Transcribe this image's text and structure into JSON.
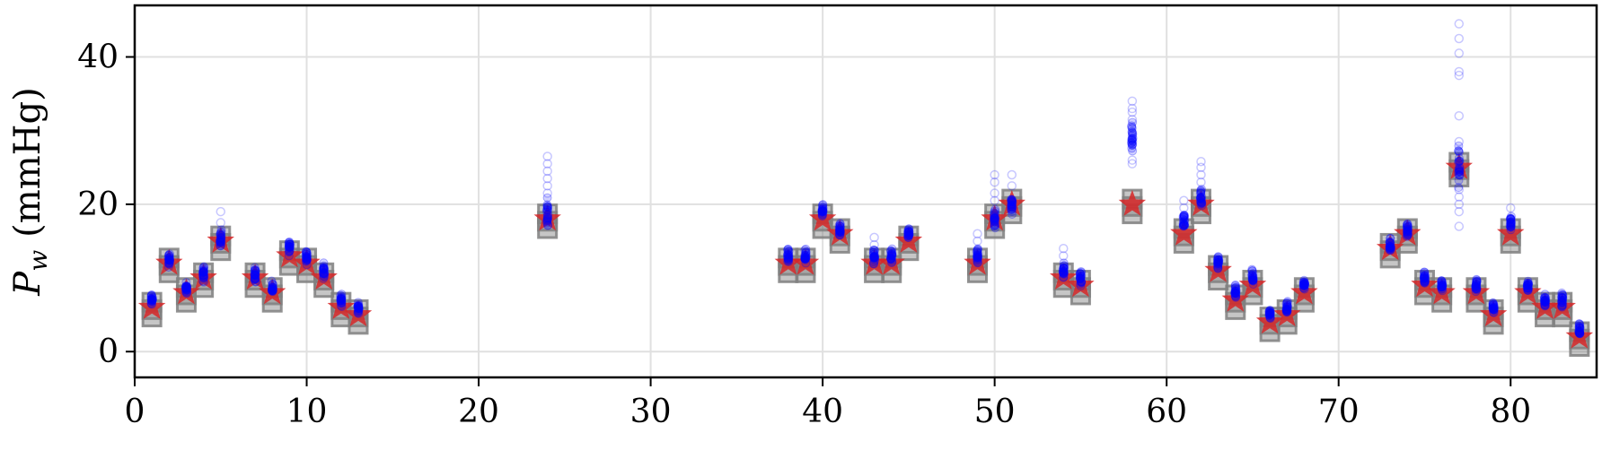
{
  "chart_data": {
    "type": "scatter",
    "title": "",
    "xlabel": "",
    "ylabel": {
      "symbol": "P",
      "subscript": "w",
      "unit": "(mmHg)"
    },
    "xlim": [
      0,
      85
    ],
    "ylim": [
      -3.5,
      47
    ],
    "grid": true,
    "x_ticks": [
      0,
      10,
      20,
      30,
      40,
      50,
      60,
      70,
      80
    ],
    "y_ticks": [
      0,
      20,
      40
    ],
    "colors": {
      "reference": "#d62728",
      "band": "#808080",
      "samples": "#0000ff",
      "grid": "#e0e0e0"
    },
    "reference_stars": [
      {
        "x": 1,
        "y": 6
      },
      {
        "x": 2,
        "y": 12
      },
      {
        "x": 3,
        "y": 8
      },
      {
        "x": 4,
        "y": 10
      },
      {
        "x": 5,
        "y": 15
      },
      {
        "x": 7,
        "y": 10
      },
      {
        "x": 8,
        "y": 8
      },
      {
        "x": 9,
        "y": 13
      },
      {
        "x": 10,
        "y": 12
      },
      {
        "x": 11,
        "y": 10
      },
      {
        "x": 12,
        "y": 6
      },
      {
        "x": 13,
        "y": 5
      },
      {
        "x": 24,
        "y": 18
      },
      {
        "x": 38,
        "y": 12
      },
      {
        "x": 39,
        "y": 12
      },
      {
        "x": 40,
        "y": 18
      },
      {
        "x": 41,
        "y": 16
      },
      {
        "x": 43,
        "y": 12
      },
      {
        "x": 44,
        "y": 12
      },
      {
        "x": 45,
        "y": 15
      },
      {
        "x": 49,
        "y": 12
      },
      {
        "x": 50,
        "y": 18
      },
      {
        "x": 51,
        "y": 20
      },
      {
        "x": 54,
        "y": 10
      },
      {
        "x": 55,
        "y": 9
      },
      {
        "x": 58,
        "y": 20
      },
      {
        "x": 61,
        "y": 16
      },
      {
        "x": 62,
        "y": 20
      },
      {
        "x": 63,
        "y": 11
      },
      {
        "x": 64,
        "y": 7
      },
      {
        "x": 65,
        "y": 9
      },
      {
        "x": 66,
        "y": 4
      },
      {
        "x": 67,
        "y": 5
      },
      {
        "x": 68,
        "y": 8
      },
      {
        "x": 73,
        "y": 14
      },
      {
        "x": 74,
        "y": 16
      },
      {
        "x": 75,
        "y": 9
      },
      {
        "x": 76,
        "y": 8
      },
      {
        "x": 77,
        "y": 25
      },
      {
        "x": 78,
        "y": 8
      },
      {
        "x": 79,
        "y": 5
      },
      {
        "x": 80,
        "y": 16
      },
      {
        "x": 81,
        "y": 8
      },
      {
        "x": 82,
        "y": 6
      },
      {
        "x": 83,
        "y": 6
      },
      {
        "x": 84,
        "y": 2
      }
    ],
    "sample_clusters": [
      {
        "x": 1,
        "mean": 7,
        "spread": 0.7,
        "outliers": []
      },
      {
        "x": 2,
        "mean": 12.5,
        "spread": 0.7,
        "outliers": []
      },
      {
        "x": 3,
        "mean": 8.5,
        "spread": 0.7,
        "outliers": []
      },
      {
        "x": 4,
        "mean": 10.5,
        "spread": 0.8,
        "outliers": []
      },
      {
        "x": 5,
        "mean": 15.5,
        "spread": 1.0,
        "outliers": [
          17.5,
          19
        ]
      },
      {
        "x": 7,
        "mean": 10.5,
        "spread": 0.8,
        "outliers": []
      },
      {
        "x": 8,
        "mean": 8.5,
        "spread": 0.6,
        "outliers": []
      },
      {
        "x": 9,
        "mean": 14,
        "spread": 0.7,
        "outliers": []
      },
      {
        "x": 10,
        "mean": 13,
        "spread": 0.7,
        "outliers": []
      },
      {
        "x": 11,
        "mean": 11,
        "spread": 0.7,
        "outliers": []
      },
      {
        "x": 12,
        "mean": 7,
        "spread": 0.6,
        "outliers": []
      },
      {
        "x": 13,
        "mean": 6,
        "spread": 0.6,
        "outliers": []
      },
      {
        "x": 24,
        "mean": 18.5,
        "spread": 1.4,
        "outliers": [
          21.5,
          22.5,
          23.5,
          24.5,
          25.5,
          26.5
        ]
      },
      {
        "x": 38,
        "mean": 13,
        "spread": 0.7,
        "outliers": []
      },
      {
        "x": 39,
        "mean": 13,
        "spread": 0.6,
        "outliers": []
      },
      {
        "x": 40,
        "mean": 19,
        "spread": 0.8,
        "outliers": []
      },
      {
        "x": 41,
        "mean": 16.5,
        "spread": 0.7,
        "outliers": []
      },
      {
        "x": 43,
        "mean": 13,
        "spread": 0.8,
        "outliers": [
          14.5,
          15.5
        ]
      },
      {
        "x": 44,
        "mean": 13,
        "spread": 0.7,
        "outliers": []
      },
      {
        "x": 45,
        "mean": 16,
        "spread": 0.7,
        "outliers": []
      },
      {
        "x": 49,
        "mean": 13,
        "spread": 0.8,
        "outliers": [
          15,
          16
        ]
      },
      {
        "x": 50,
        "mean": 18,
        "spread": 1.0,
        "outliers": [
          20.5,
          21.5,
          23,
          24
        ]
      },
      {
        "x": 51,
        "mean": 20,
        "spread": 1.0,
        "outliers": [
          22.5,
          24
        ]
      },
      {
        "x": 54,
        "mean": 11,
        "spread": 0.8,
        "outliers": [
          13,
          14
        ]
      },
      {
        "x": 55,
        "mean": 10,
        "spread": 0.7,
        "outliers": []
      },
      {
        "x": 58,
        "mean": 29,
        "spread": 1.5,
        "outliers": [
          25.5,
          26,
          31.5,
          32.5,
          33,
          34
        ]
      },
      {
        "x": 61,
        "mean": 17.5,
        "spread": 1.0,
        "outliers": [
          19.5,
          20.5
        ]
      },
      {
        "x": 62,
        "mean": 20.5,
        "spread": 1.1,
        "outliers": [
          23,
          24,
          25,
          25.8
        ]
      },
      {
        "x": 63,
        "mean": 12,
        "spread": 0.8,
        "outliers": []
      },
      {
        "x": 64,
        "mean": 8,
        "spread": 0.7,
        "outliers": []
      },
      {
        "x": 65,
        "mean": 10,
        "spread": 0.7,
        "outliers": []
      },
      {
        "x": 66,
        "mean": 5,
        "spread": 0.6,
        "outliers": []
      },
      {
        "x": 67,
        "mean": 6,
        "spread": 0.6,
        "outliers": []
      },
      {
        "x": 68,
        "mean": 9,
        "spread": 0.6,
        "outliers": []
      },
      {
        "x": 73,
        "mean": 14.5,
        "spread": 0.7,
        "outliers": []
      },
      {
        "x": 74,
        "mean": 16.5,
        "spread": 0.7,
        "outliers": []
      },
      {
        "x": 75,
        "mean": 10,
        "spread": 0.6,
        "outliers": []
      },
      {
        "x": 76,
        "mean": 9,
        "spread": 0.6,
        "outliers": []
      },
      {
        "x": 77,
        "mean": 25,
        "spread": 2.5,
        "outliers": [
          17,
          19,
          20,
          21,
          22,
          28.5,
          32,
          37.5,
          38,
          40.5,
          42.5,
          44.5
        ]
      },
      {
        "x": 78,
        "mean": 9,
        "spread": 0.6,
        "outliers": []
      },
      {
        "x": 79,
        "mean": 6,
        "spread": 0.6,
        "outliers": []
      },
      {
        "x": 80,
        "mean": 17.5,
        "spread": 0.8,
        "outliers": [
          19.5
        ]
      },
      {
        "x": 81,
        "mean": 9,
        "spread": 0.6,
        "outliers": []
      },
      {
        "x": 82,
        "mean": 7,
        "spread": 0.6,
        "outliers": []
      },
      {
        "x": 83,
        "mean": 7,
        "spread": 0.6,
        "outliers": []
      },
      {
        "x": 84,
        "mean": 3,
        "spread": 0.6,
        "outliers": []
      }
    ]
  }
}
